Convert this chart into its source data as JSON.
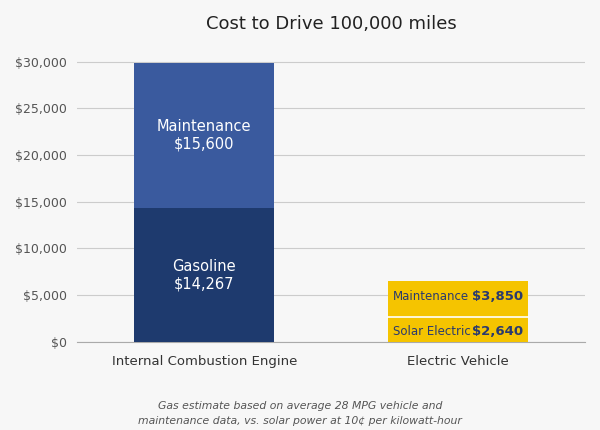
{
  "title": "Cost to Drive 100,000 miles",
  "categories": [
    "Internal Combustion Engine",
    "Electric Vehicle"
  ],
  "ice_gasoline": 14267,
  "ice_maintenance": 15600,
  "ev_solar": 2640,
  "ev_maintenance": 3850,
  "ice_gasoline_color": "#1e3a6e",
  "ice_maintenance_color": "#3a5a9e",
  "ev_color": "#f5c400",
  "ylim": [
    0,
    32000
  ],
  "yticks": [
    0,
    5000,
    10000,
    15000,
    20000,
    25000,
    30000
  ],
  "footnote": "Gas estimate based on average 28 MPG vehicle and\nmaintenance data, vs. solar power at 10¢ per kilowatt-hour",
  "background_color": "#f7f7f7",
  "label_gasoline": "Gasoline",
  "label_gasoline_value": "$14,267",
  "label_maintenance_ice": "Maintenance",
  "label_maintenance_ice_value": "$15,600",
  "label_solar": "Solar Electric",
  "label_solar_value": "$2,640",
  "label_maintenance_ev": "Maintenance",
  "label_maintenance_ev_value": "$3,850",
  "ice_label_color": "#ffffff",
  "ev_label_color": "#2a3a6e"
}
